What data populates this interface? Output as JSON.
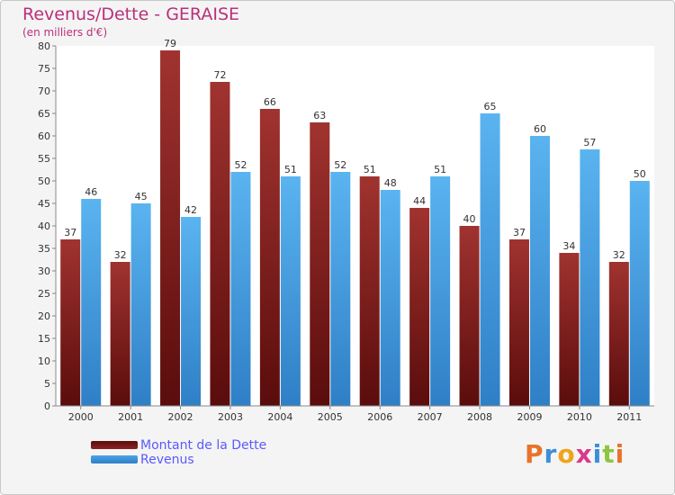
{
  "chart_data": {
    "type": "bar",
    "title": "Revenus/Dette - GERAISE",
    "subtitle": "(en milliers d'€)",
    "categories": [
      "2000",
      "2001",
      "2002",
      "2003",
      "2004",
      "2005",
      "2006",
      "2007",
      "2008",
      "2009",
      "2010",
      "2011"
    ],
    "series": [
      {
        "name": "Montant de la Dette",
        "color": "#7a1a1a",
        "values": [
          37,
          32,
          79,
          72,
          66,
          63,
          51,
          44,
          40,
          37,
          34,
          32
        ]
      },
      {
        "name": "Revenus",
        "color": "#4aa3e6",
        "values": [
          46,
          45,
          42,
          52,
          51,
          52,
          48,
          51,
          65,
          60,
          57,
          50
        ]
      }
    ],
    "ylim": [
      0,
      80
    ],
    "yticks": [
      0,
      5,
      10,
      15,
      20,
      25,
      30,
      35,
      40,
      45,
      50,
      55,
      60,
      65,
      70,
      75,
      80
    ],
    "grid": false,
    "legend_position": "bottom-left"
  },
  "logo": {
    "text": "Proxiti",
    "colors": [
      "#e8732a",
      "#3b8ed8",
      "#f0a41a",
      "#d83a8a",
      "#3b8ed8",
      "#8cc63f",
      "#e8732a"
    ]
  }
}
